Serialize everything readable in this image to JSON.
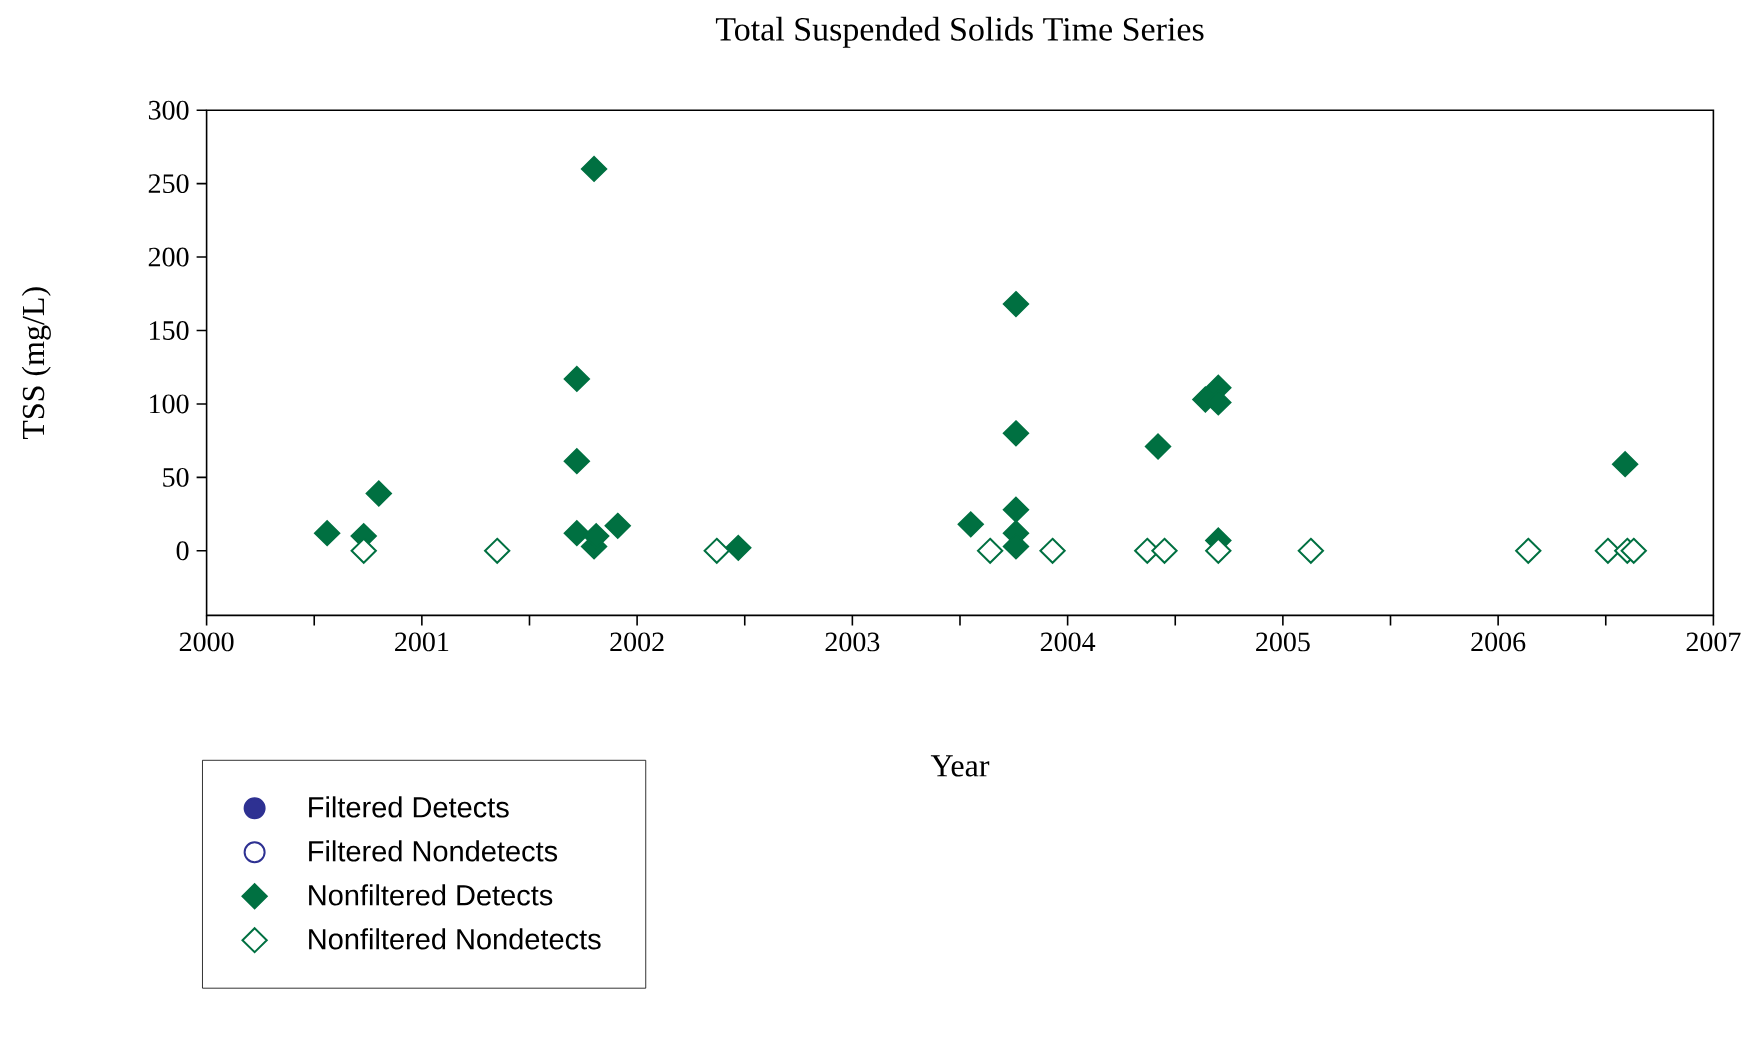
{
  "chart_data": {
    "type": "scatter",
    "title": "Total Suspended Solids Time Series",
    "xlabel": "Year",
    "ylabel": "TSS (mg/L)",
    "xlim": [
      2000,
      2007
    ],
    "ylim": [
      -44,
      300
    ],
    "xticks": [
      2000,
      {
        "value": 2000.5,
        "label": null
      },
      2001,
      {
        "value": 2001.5,
        "label": null
      },
      2002,
      {
        "value": 2002.5,
        "label": null
      },
      2003,
      {
        "value": 2003.5,
        "label": null
      },
      2004,
      {
        "value": 2004.5,
        "label": null
      },
      2005,
      {
        "value": 2005.5,
        "label": null
      },
      2006,
      {
        "value": 2006.5,
        "label": null
      },
      2007
    ],
    "yticks": [
      0,
      50,
      100,
      150,
      200,
      250,
      300
    ],
    "legend": "bottom",
    "series": [
      {
        "name": "Filtered Detects",
        "color": "#2e3192",
        "marker": "circle"
      },
      {
        "name": "Filtered Nondetects",
        "color": "#2e3192",
        "marker": "circle"
      },
      {
        "name": "Nonfiltered Detects",
        "color": "#007041",
        "marker": "diamond",
        "x": [
          2000.56,
          2000.73,
          2000.8,
          2001.72,
          2001.72,
          2001.8,
          2001.72,
          2001.8,
          2001.81,
          2001.91,
          2002.47,
          2003.55,
          2003.76,
          2003.76,
          2003.76,
          2003.76,
          2003.76,
          2004.42,
          2004.64,
          2004.7,
          2004.7,
          2004.7,
          2006.59
        ],
        "values": [
          12,
          10,
          39,
          117,
          61,
          260,
          12,
          3,
          10,
          17,
          2,
          18,
          168,
          80,
          28,
          12,
          3,
          71,
          103,
          111,
          101,
          7,
          59
        ]
      },
      {
        "name": "Nonfiltered Nondetects",
        "color": "#007041",
        "marker": "diamond",
        "x": [
          2000.73,
          2001.35,
          2002.37,
          2003.64,
          2003.93,
          2004.37,
          2004.45,
          2004.7,
          2005.13,
          2006.14,
          2006.51,
          2006.6,
          2006.63
        ],
        "values": [
          0,
          0,
          0,
          0,
          0,
          0,
          0,
          0,
          0,
          0,
          0,
          0,
          0
        ]
      }
    ]
  }
}
